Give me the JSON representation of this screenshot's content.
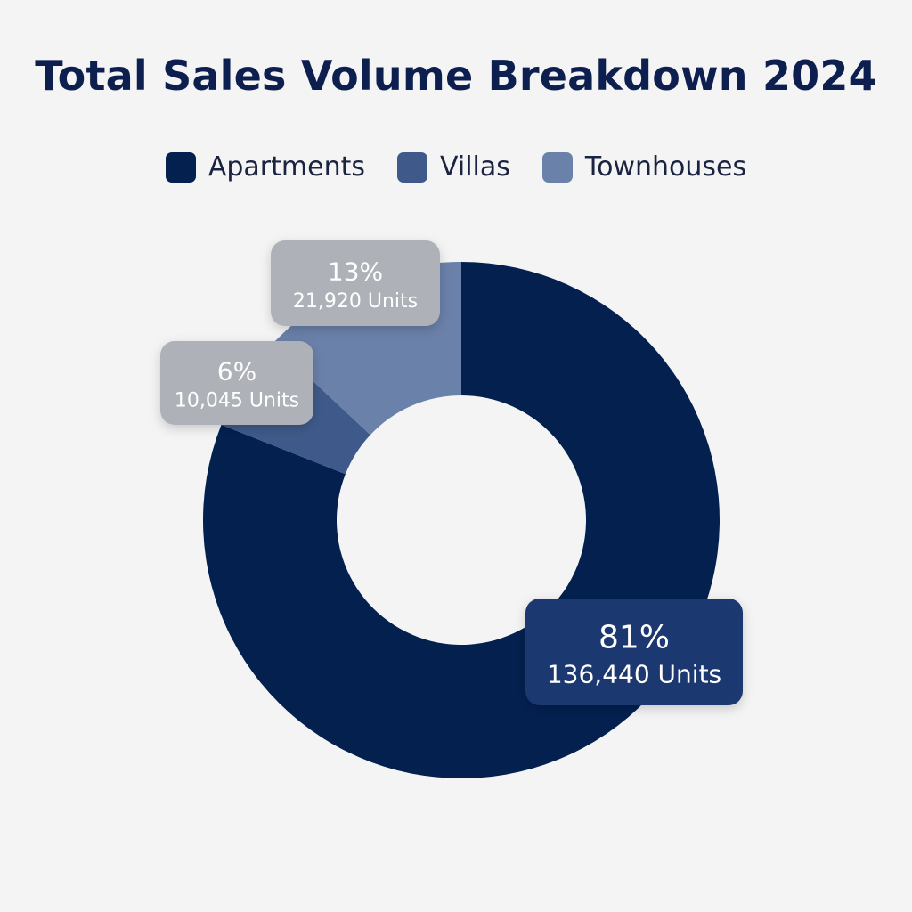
{
  "chart_data": {
    "type": "pie",
    "variant": "donut",
    "title": "Total Sales Volume Breakdown 2024",
    "legend_position": "top",
    "series": [
      {
        "name": "Apartments",
        "value": 136440,
        "percent": 81,
        "percent_label": "81%",
        "value_label": "136,440 Units",
        "color": "#03204f",
        "label_bg": "#1d3770",
        "label_fg": "#ffffff"
      },
      {
        "name": "Villas",
        "value": 10045,
        "percent": 6,
        "percent_label": "6%",
        "value_label": "10,045 Units",
        "color": "#3f5a8a",
        "label_bg": "#aeb1b7",
        "label_fg": "#ffffff"
      },
      {
        "name": "Townhouses",
        "value": 21920,
        "percent": 13,
        "percent_label": "13%",
        "value_label": "21,920 Units",
        "color": "#6a81a9",
        "label_bg": "#aeb1b7",
        "label_fg": "#ffffff"
      }
    ]
  }
}
